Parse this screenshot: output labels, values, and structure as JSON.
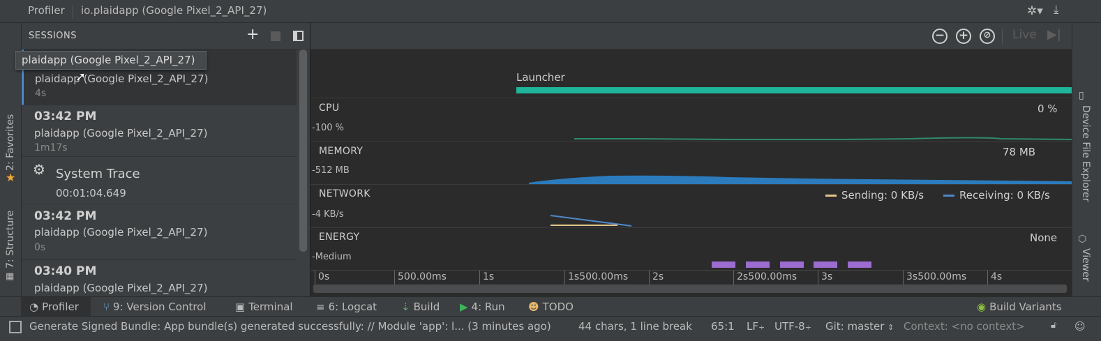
{
  "topbar": {
    "tabs": [
      "Profiler",
      "io.plaidapp (Google Pixel_2_API_27)"
    ],
    "settings_icon": "gear-icon",
    "hide_icon": "minimize-icon"
  },
  "left_strip": {
    "favorites": "2: Favorites",
    "structure": "7: Structure"
  },
  "right_strip": {
    "device_file_explorer": "Device File Explorer",
    "viewer": "Viewer"
  },
  "sessions": {
    "header": "SESSIONS",
    "tooltip": "plaidapp (Google Pixel_2_API_27)",
    "items": [
      {
        "time": "",
        "name": "plaidapp (Google Pixel_2_API_27)",
        "duration": "4s"
      },
      {
        "time": "03:42 PM",
        "name": "plaidapp (Google Pixel_2_API_27)",
        "duration": "1m17s"
      },
      {
        "time": "03:42 PM",
        "name": "plaidapp (Google Pixel_2_API_27)",
        "duration": "0s"
      },
      {
        "time": "03:40 PM",
        "name": "plaidapp (Google Pixel_2_API_27)",
        "duration": ""
      }
    ],
    "trace": {
      "label": "System Trace",
      "duration": "00:01:04.649"
    }
  },
  "toolbar": {
    "zoom_out": "−",
    "zoom_in": "+",
    "reset": "⊘",
    "live_label": "Live"
  },
  "monitors": {
    "activity": "Launcher",
    "cpu": {
      "title": "CPU",
      "scale": "100 %",
      "value": "0 %"
    },
    "memory": {
      "title": "MEMORY",
      "scale": "512 MB",
      "value": "78 MB"
    },
    "network": {
      "title": "NETWORK",
      "scale": "4 KB/s",
      "sending": "Sending: 0 KB/s",
      "receiving": "Receiving: 0 KB/s"
    },
    "energy": {
      "title": "ENERGY",
      "scale": "Medium",
      "value": "None"
    }
  },
  "axis": {
    "ticks": [
      "0s",
      "500.00ms",
      "1s",
      "1s500.00ms",
      "2s",
      "2s500.00ms",
      "3s",
      "3s500.00ms",
      "4s"
    ]
  },
  "colors": {
    "launcher": "#1fb59a",
    "cpu": "#2e8a6e",
    "memory": "#2b7bbd",
    "sending": "#e2c58a",
    "receiving": "#4f86c6",
    "energy": "#9c6cd0"
  },
  "bottombar": {
    "profiler": "Profiler",
    "version_control": "9: Version Control",
    "terminal": "Terminal",
    "logcat": "6: Logcat",
    "build": "Build",
    "run": "4: Run",
    "todo": "TODO",
    "build_variants": "Build Variants"
  },
  "statusbar": {
    "message": "Generate Signed Bundle: App bundle(s) generated successfully: // Module 'app': l... (3 minutes ago)",
    "chars": "44 chars, 1 line break",
    "position": "65:1",
    "line_sep": "LF",
    "encoding": "UTF-8",
    "git": "Git: master",
    "context": "Context: <no context>"
  }
}
